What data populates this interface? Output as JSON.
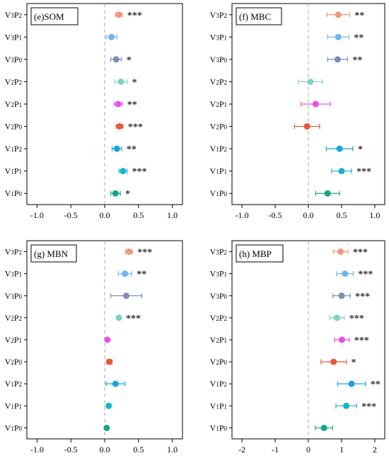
{
  "chart_data": [
    {
      "type": "scatter",
      "title": "(e)SOM",
      "categories": [
        "V₃P₂",
        "V₃P₁",
        "V₃P₀",
        "V₂P₂",
        "V₂P₁",
        "V₂P₀",
        "V₁P₂",
        "V₁P₁",
        "V₁P₀"
      ],
      "values": [
        0.21,
        0.1,
        0.17,
        0.24,
        0.2,
        0.22,
        0.18,
        0.27,
        0.16
      ],
      "err": [
        0.05,
        0.08,
        0.08,
        0.09,
        0.06,
        0.05,
        0.07,
        0.06,
        0.07
      ],
      "sig": [
        "***",
        "",
        "*",
        "*",
        "**",
        "***",
        "**",
        "***",
        "*"
      ],
      "colors": [
        "#f0957a",
        "#6fb3ee",
        "#7b8db8",
        "#7fd2c0",
        "#e84fe6",
        "#e85538",
        "#1aa3de",
        "#19b3cf",
        "#18a585"
      ],
      "xlim": [
        -1.15,
        1.15
      ],
      "xticks": [
        -1.0,
        -0.5,
        0.0,
        0.5,
        1.0
      ],
      "xtick_labels": [
        "-1.0",
        "-0.5",
        "0.0",
        "0.5",
        "1.0"
      ],
      "xlabel": "",
      "ylabel": "",
      "grid": false
    },
    {
      "type": "scatter",
      "title": "(f) MBC",
      "categories": [
        "V₃P₂",
        "V₃P₁",
        "V₃P₀",
        "V₂P₂",
        "V₂P₁",
        "V₂P₀",
        "V₁P₂",
        "V₁P₁",
        "V₁P₀"
      ],
      "values": [
        0.45,
        0.45,
        0.44,
        0.03,
        0.11,
        -0.02,
        0.47,
        0.5,
        0.29
      ],
      "err": [
        0.17,
        0.16,
        0.15,
        0.18,
        0.22,
        0.19,
        0.2,
        0.15,
        0.18
      ],
      "sig": [
        "**",
        "**",
        "**",
        "",
        "",
        "",
        "*",
        "***",
        ""
      ],
      "colors": [
        "#f0957a",
        "#6fb3ee",
        "#7b8db8",
        "#7fd2c0",
        "#e84fe6",
        "#e85538",
        "#1aa3de",
        "#19b3cf",
        "#18a585"
      ],
      "xlim": [
        -1.15,
        1.15
      ],
      "xticks": [
        -1.0,
        -0.5,
        0.0,
        0.5,
        1.0
      ],
      "xtick_labels": [
        "-1.0",
        "-0.5",
        "0.0",
        "0.5",
        "1.0"
      ],
      "xlabel": "",
      "ylabel": "",
      "grid": false
    },
    {
      "type": "scatter",
      "title": "(g) MBN",
      "categories": [
        "V₃P₂",
        "V₃P₁",
        "V₃P₀",
        "V₂P₂",
        "V₂P₁",
        "V₂P₀",
        "V₁P₂",
        "V₁P₁",
        "V₁P₀"
      ],
      "values": [
        0.36,
        0.3,
        0.32,
        0.21,
        0.04,
        0.07,
        0.16,
        0.06,
        0.03
      ],
      "err": [
        0.05,
        0.1,
        0.23,
        0.03,
        0.02,
        0.04,
        0.14,
        0.03,
        0.02
      ],
      "sig": [
        "***",
        "**",
        "",
        "***",
        "",
        "",
        "",
        "",
        ""
      ],
      "colors": [
        "#f0957a",
        "#6fb3ee",
        "#7b8db8",
        "#7fd2c0",
        "#e84fe6",
        "#e85538",
        "#1aa3de",
        "#19b3cf",
        "#18a585"
      ],
      "xlim": [
        -1.15,
        1.15
      ],
      "xticks": [
        -1.0,
        -0.5,
        0.0,
        0.5,
        1.0
      ],
      "xtick_labels": [
        "-1.0",
        "-0.5",
        "0.0",
        "0.5",
        "1.0"
      ],
      "xlabel": "",
      "ylabel": "",
      "grid": false
    },
    {
      "type": "scatter",
      "title": "(h) MBP",
      "categories": [
        "V₃P₂",
        "V₃P₁",
        "V₃P₀",
        "V₂P₂",
        "V₂P₁",
        "V₂P₀",
        "V₁P₂",
        "V₁P₁",
        "V₁P₀"
      ],
      "values": [
        0.97,
        1.1,
        1.0,
        0.86,
        1.01,
        0.76,
        1.3,
        1.14,
        0.47
      ],
      "err": [
        0.22,
        0.25,
        0.26,
        0.22,
        0.22,
        0.38,
        0.42,
        0.31,
        0.26
      ],
      "sig": [
        "***",
        "***",
        "***",
        "***",
        "***",
        "*",
        "**",
        "***",
        ""
      ],
      "colors": [
        "#f0957a",
        "#6fb3ee",
        "#7b8db8",
        "#7fd2c0",
        "#e84fe6",
        "#e85538",
        "#1aa3de",
        "#19b3cf",
        "#18a585"
      ],
      "xlim": [
        -2.3,
        2.3
      ],
      "xticks": [
        -2,
        -1,
        0,
        1,
        2
      ],
      "xtick_labels": [
        "-2",
        "-1",
        "0",
        "1",
        "2"
      ],
      "xlabel": "",
      "ylabel": "",
      "grid": false
    }
  ]
}
